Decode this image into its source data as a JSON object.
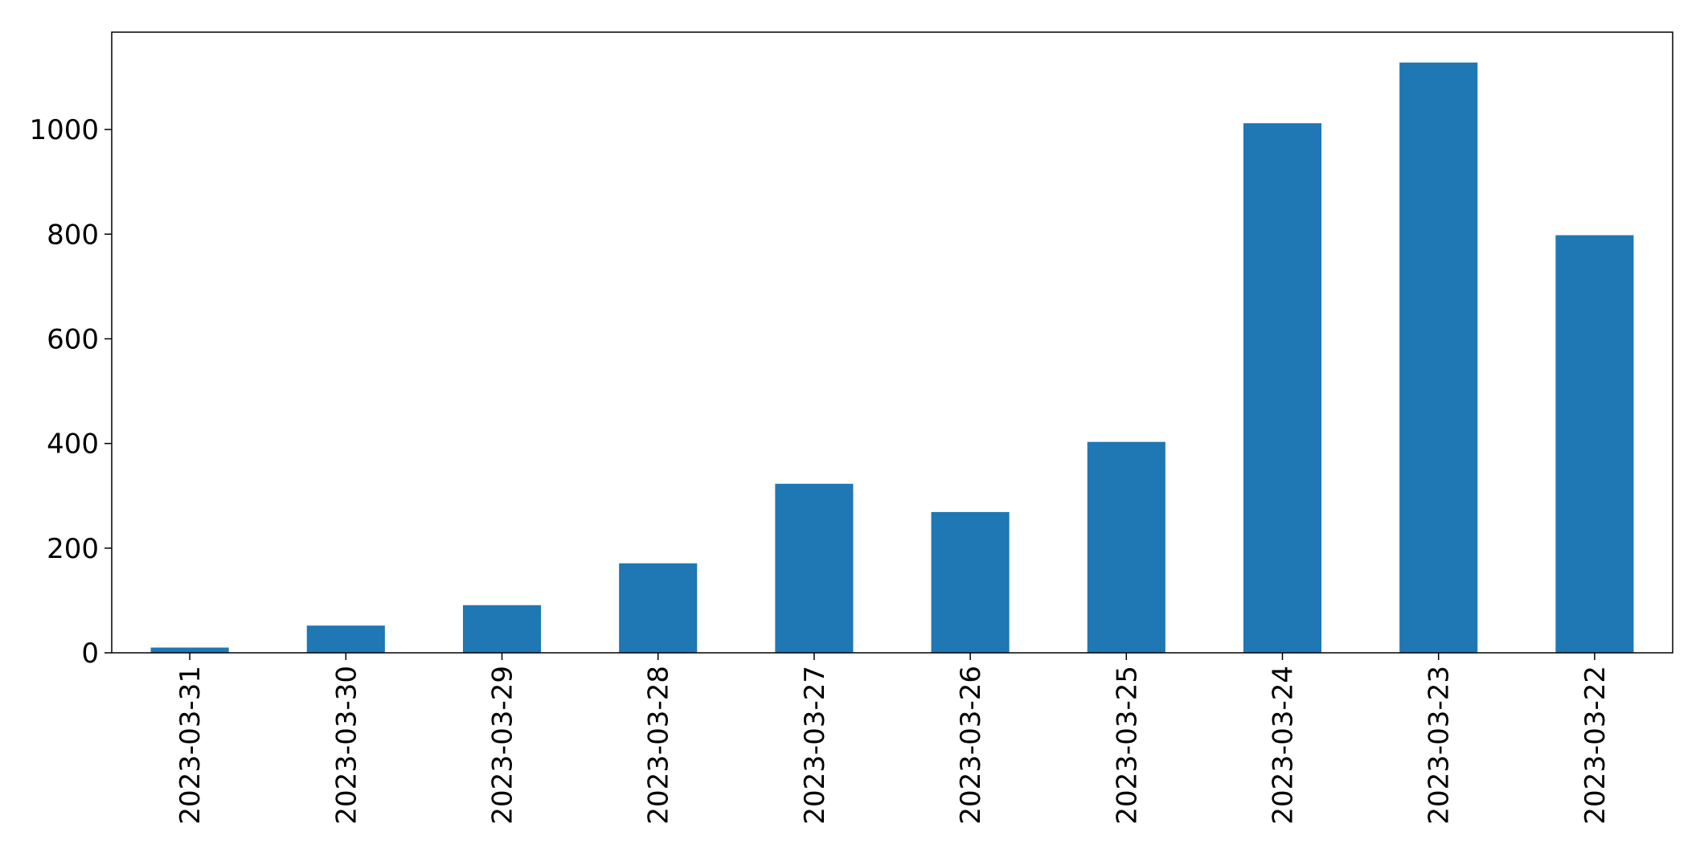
{
  "chart_data": {
    "type": "bar",
    "title": "",
    "xlabel": "",
    "ylabel": "",
    "categories": [
      "2023-03-31",
      "2023-03-30",
      "2023-03-29",
      "2023-03-28",
      "2023-03-27",
      "2023-03-26",
      "2023-03-25",
      "2023-03-24",
      "2023-03-23",
      "2023-03-22"
    ],
    "values": [
      10,
      52,
      91,
      171,
      323,
      269,
      403,
      1012,
      1128,
      798
    ],
    "ylim": [
      0,
      1186
    ],
    "yticks": [
      0,
      200,
      400,
      600,
      800,
      1000
    ],
    "x_tick_rotation": "vertical",
    "grid": false,
    "legend": "none",
    "bar_color": "#1f77b4"
  }
}
